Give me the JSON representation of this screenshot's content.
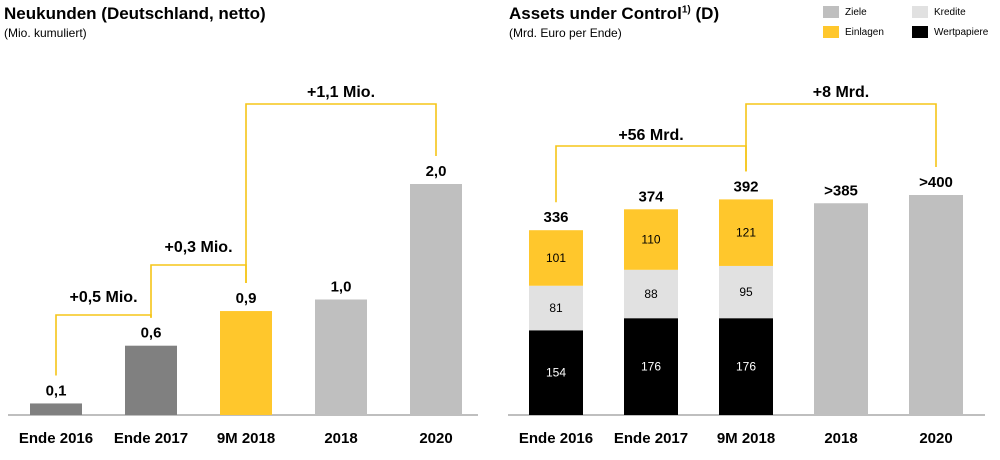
{
  "chart_data": [
    {
      "type": "bar",
      "title": "Neukunden (Deutschland, netto)",
      "subtitle": "(Mio. kumuliert)",
      "categories": [
        "Ende 2016",
        "Ende 2017",
        "9M 2018",
        "2018",
        "2020"
      ],
      "values": [
        0.1,
        0.6,
        0.9,
        1.0,
        2.0
      ],
      "value_labels": [
        "0,1",
        "0,6",
        "0,9",
        "1,0",
        "2,0"
      ],
      "bar_colors": [
        "#808080",
        "#808080",
        "#FFC72C",
        "#BFBFBF",
        "#BFBFBF"
      ],
      "ylim": [
        0,
        2.0
      ],
      "grid": false,
      "annotations": [
        {
          "from": "Ende 2016",
          "to": "Ende 2017",
          "text": "+0,5 Mio."
        },
        {
          "from": "Ende 2017",
          "to": "9M 2018",
          "text": "+0,3 Mio."
        },
        {
          "from": "9M 2018",
          "to": "2020",
          "text": "+1,1 Mio."
        }
      ]
    },
    {
      "type": "bar",
      "stacked": true,
      "title": "Assets under Control",
      "title_superscript": "1)",
      "title_suffix": "(D)",
      "subtitle": "(Mrd. Euro per Ende)",
      "categories": [
        "Ende 2016",
        "Ende 2017",
        "9M 2018",
        "2018",
        "2020"
      ],
      "series": [
        {
          "name": "Wertpapiere",
          "color": "#000000",
          "text_color": "#FFFFFF",
          "values": [
            154,
            176,
            176,
            null,
            null
          ]
        },
        {
          "name": "Kredite",
          "color": "#E1E1E1",
          "text_color": "#000000",
          "values": [
            81,
            88,
            95,
            null,
            null
          ]
        },
        {
          "name": "Einlagen",
          "color": "#FFC72C",
          "text_color": "#000000",
          "values": [
            101,
            110,
            121,
            null,
            null
          ]
        },
        {
          "name": "Ziele",
          "color": "#BFBFBF",
          "text_color": "#000000",
          "values": [
            null,
            null,
            null,
            385,
            400
          ]
        }
      ],
      "totals": [
        "336",
        "374",
        "392",
        ">385",
        ">400"
      ],
      "ylim": [
        0,
        400
      ],
      "grid": false,
      "legend": {
        "placement": "top-right",
        "items": [
          {
            "name": "Ziele",
            "color": "#BFBFBF"
          },
          {
            "name": "Kredite",
            "color": "#E1E1E1"
          },
          {
            "name": "Einlagen",
            "color": "#FFC72C"
          },
          {
            "name": "Wertpapiere",
            "color": "#000000"
          }
        ]
      },
      "annotations": [
        {
          "from": "Ende 2016",
          "to": "9M 2018",
          "text": "+56 Mrd."
        },
        {
          "from": "9M 2018",
          "to": "2020",
          "text": "+8 Mrd."
        }
      ]
    }
  ]
}
